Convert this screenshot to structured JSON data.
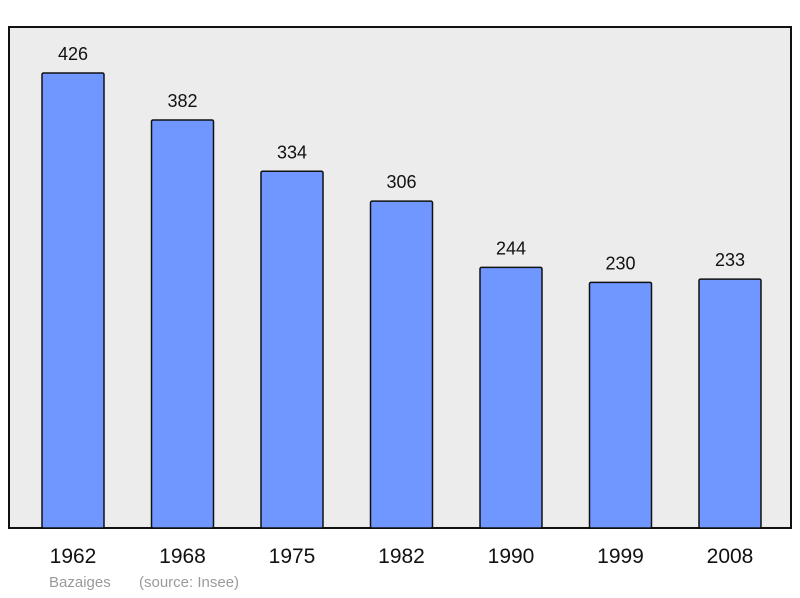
{
  "chart_data": {
    "type": "bar",
    "categories": [
      "1962",
      "1968",
      "1975",
      "1982",
      "1990",
      "1999",
      "2008"
    ],
    "values": [
      426,
      382,
      334,
      306,
      244,
      230,
      233
    ],
    "title": "",
    "xlabel": "",
    "ylabel": "",
    "ylim": [
      0,
      460
    ],
    "grid": false,
    "bar_color": "#7096ff",
    "plot_background": "#ececec"
  },
  "footer": {
    "commune": "Bazaiges",
    "source": "(source: Insee)"
  }
}
